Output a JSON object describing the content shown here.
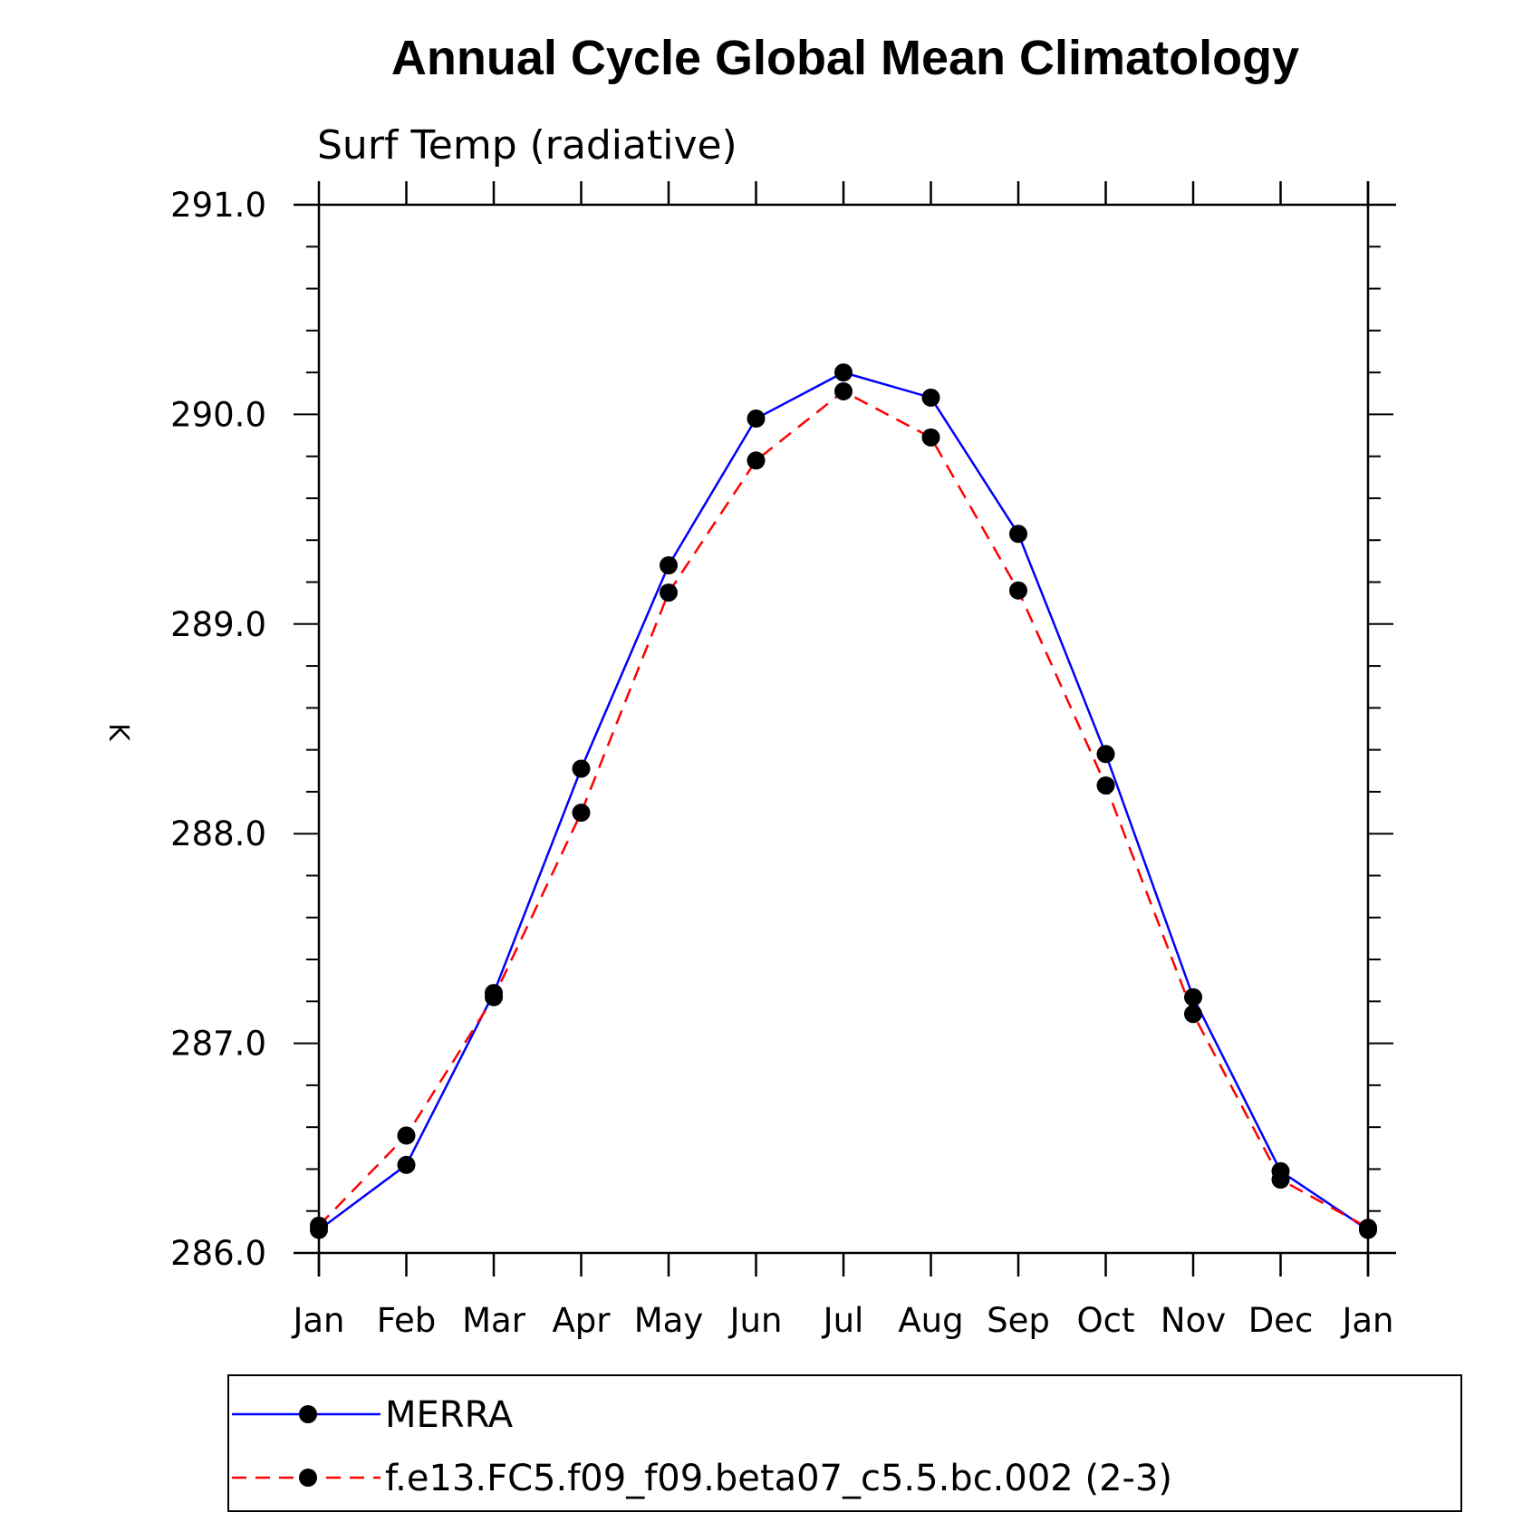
{
  "chart_data": {
    "type": "line",
    "title": "Annual Cycle Global Mean Climatology",
    "subtitle": "Surf Temp (radiative)",
    "xlabel": "",
    "ylabel": "K",
    "categories": [
      "Jan",
      "Feb",
      "Mar",
      "Apr",
      "May",
      "Jun",
      "Jul",
      "Aug",
      "Sep",
      "Oct",
      "Nov",
      "Dec",
      "Jan"
    ],
    "ylim": [
      286.0,
      291.0
    ],
    "yticks": [
      "286.0",
      "287.0",
      "288.0",
      "289.0",
      "290.0",
      "291.0"
    ],
    "grid": false,
    "legend_position": "bottom",
    "series": [
      {
        "name": "MERRA",
        "color": "#0000ff",
        "line_style": "solid",
        "marker": "filled-circle",
        "values": [
          286.11,
          286.42,
          287.24,
          288.31,
          289.28,
          289.98,
          290.2,
          290.08,
          289.43,
          288.38,
          287.22,
          286.39,
          286.11
        ]
      },
      {
        "name": "f.e13.FC5.f09_f09.beta07_c5.5.bc.002 (2-3)",
        "color": "#ff0000",
        "line_style": "dashed",
        "marker": "filled-circle",
        "values": [
          286.13,
          286.56,
          287.22,
          288.1,
          289.15,
          289.78,
          290.11,
          289.89,
          289.16,
          288.23,
          287.14,
          286.35,
          286.12
        ]
      }
    ]
  }
}
